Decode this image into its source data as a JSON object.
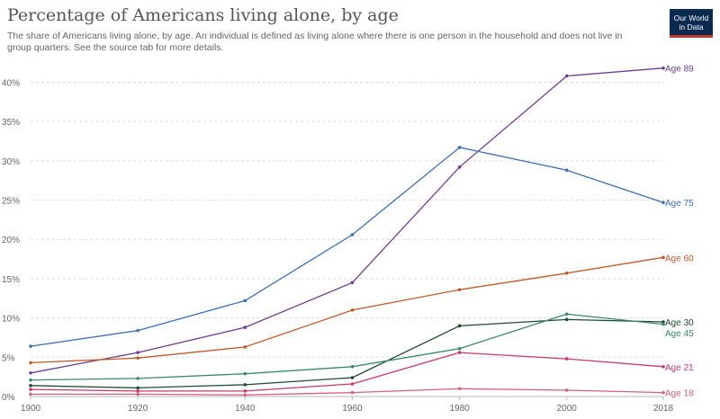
{
  "header": {
    "title": "Percentage of Americans living alone, by age",
    "subtitle": "The share of Americans living alone, by age. An individual is defined as living alone where there is one person in the household and does not live in group quarters. See the source tab for more details.",
    "logo_line1": "Our World",
    "logo_line2": "in Data"
  },
  "chart_data": {
    "type": "line",
    "title": "Percentage of Americans living alone, by age",
    "x": [
      1900,
      1920,
      1940,
      1960,
      1980,
      2000,
      2018
    ],
    "xticks": [
      1900,
      1920,
      1940,
      1960,
      1980,
      2000,
      2018
    ],
    "ylim": [
      0,
      42
    ],
    "yticks": [
      0,
      5,
      10,
      15,
      20,
      25,
      30,
      35,
      40
    ],
    "ytick_labels": [
      "0%",
      "5%",
      "10%",
      "15%",
      "20%",
      "25%",
      "30%",
      "35%",
      "40%"
    ],
    "grid": true,
    "series": [
      {
        "name": "Age 89",
        "color": "#6d3e91",
        "values": [
          3.0,
          5.6,
          8.8,
          14.5,
          29.2,
          40.8,
          41.8
        ]
      },
      {
        "name": "Age 75",
        "color": "#3c6eb4",
        "values": [
          6.4,
          8.4,
          12.2,
          20.6,
          31.7,
          28.8,
          24.7
        ]
      },
      {
        "name": "Age 60",
        "color": "#c15a2b",
        "values": [
          4.3,
          4.9,
          6.3,
          11.0,
          13.6,
          15.7,
          17.7
        ]
      },
      {
        "name": "Age 30",
        "color": "#1e4a2c",
        "values": [
          1.4,
          1.1,
          1.5,
          2.4,
          9.0,
          9.8,
          9.5
        ]
      },
      {
        "name": "Age 45",
        "color": "#3a8a66",
        "values": [
          2.1,
          2.3,
          2.9,
          3.8,
          6.1,
          10.5,
          9.2
        ]
      },
      {
        "name": "Age 21",
        "color": "#c8386a",
        "values": [
          0.9,
          0.7,
          0.7,
          1.6,
          5.6,
          4.8,
          3.8
        ]
      },
      {
        "name": "Age 18",
        "color": "#d8607f",
        "values": [
          0.3,
          0.3,
          0.2,
          0.5,
          1.0,
          0.8,
          0.5
        ]
      }
    ]
  }
}
